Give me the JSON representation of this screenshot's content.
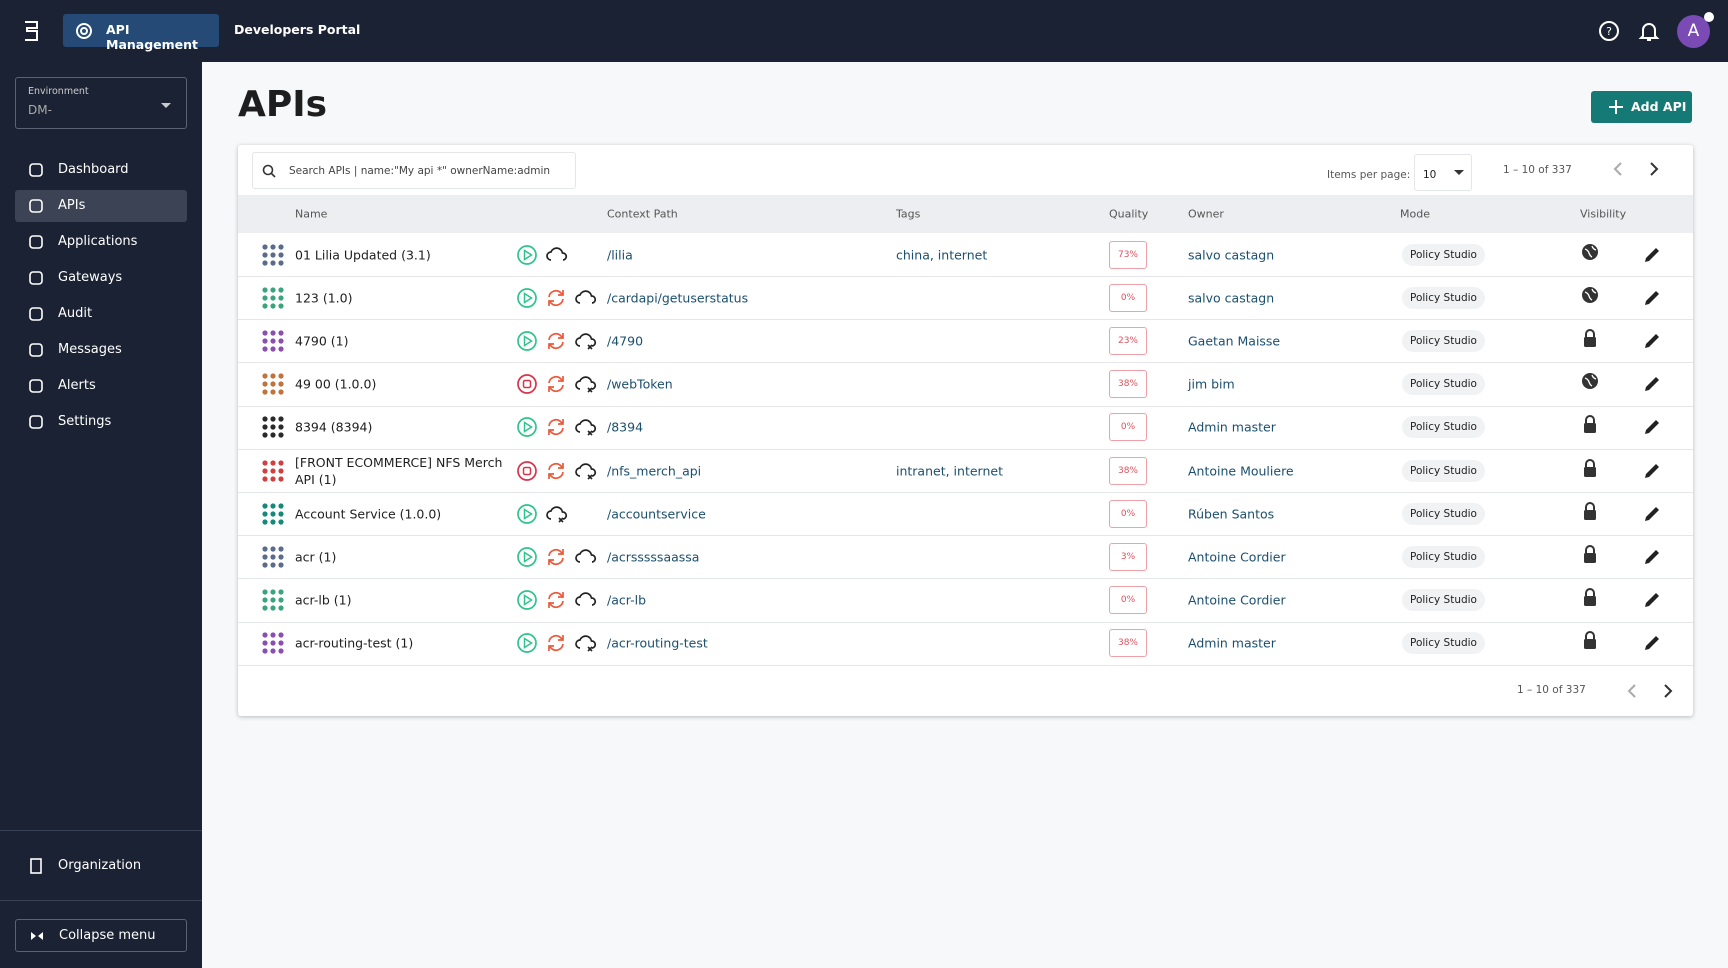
{
  "topbar": {
    "api_management": "API Management",
    "developers_portal": "Developers Portal",
    "avatar": "A"
  },
  "sidebar": {
    "environment_label": "Environment",
    "environment_value": "DM-",
    "nav": [
      "Dashboard",
      "APIs",
      "Applications",
      "Gateways",
      "Audit",
      "Messages",
      "Alerts",
      "Settings"
    ],
    "organization": "Organization",
    "collapse": "Collapse menu"
  },
  "page": {
    "title": "APIs",
    "add_button": "Add API"
  },
  "table": {
    "search_placeholder": "Search APIs | name:\"My api *\" ownerName:admin",
    "items_per_page_label": "Items per page:",
    "items_per_page": "10",
    "pagination": "1 – 10 of 337",
    "columns": [
      "Name",
      "Context Path",
      "Tags",
      "Quality",
      "Owner",
      "Mode",
      "Visibility"
    ],
    "rows": [
      {
        "name": "01 Lilia Updated (3.1)",
        "status": "started",
        "sync": false,
        "deployed": true,
        "context_path": "/lilia",
        "tags": "china, internet",
        "quality": "73%",
        "owner": "salvo castagn",
        "mode": "Policy Studio",
        "visibility": "public"
      },
      {
        "name": "123 (1.0)",
        "status": "started",
        "sync": true,
        "deployed": true,
        "context_path": "/cardapi/getuserstatus",
        "quality": "0%",
        "owner": "salvo castagn",
        "mode": "Policy Studio",
        "visibility": "public"
      },
      {
        "name": "4790 (1)",
        "status": "started",
        "sync": true,
        "deployed": false,
        "context_path": "/4790",
        "quality": "23%",
        "owner": "Gaetan Maisse",
        "mode": "Policy Studio",
        "visibility": "private"
      },
      {
        "name": "49 00 (1.0.0)",
        "status": "stopped",
        "sync": true,
        "deployed": false,
        "context_path": "/webToken",
        "quality": "38%",
        "owner": "jim bim",
        "mode": "Policy Studio",
        "visibility": "public"
      },
      {
        "name": "8394 (8394)",
        "status": "started",
        "sync": true,
        "deployed": false,
        "context_path": "/8394",
        "quality": "0%",
        "owner": "Admin master",
        "mode": "Policy Studio",
        "visibility": "private"
      },
      {
        "name": "[FRONT ECOMMERCE] NFS Merch API (1)",
        "status": "stopped",
        "sync": true,
        "deployed": false,
        "context_path": "/nfs_merch_api",
        "tags": "intranet, internet",
        "quality": "38%",
        "owner": "Antoine Mouliere",
        "mode": "Policy Studio",
        "visibility": "private"
      },
      {
        "name": "Account Service (1.0.0)",
        "status": "started",
        "sync": false,
        "deployed": false,
        "context_path": "/accountservice",
        "quality": "0%",
        "owner": "Rúben Santos",
        "mode": "Policy Studio",
        "visibility": "private"
      },
      {
        "name": "acr (1)",
        "status": "started",
        "sync": true,
        "deployed": true,
        "context_path": "/acrsssssaassa",
        "quality": "3%",
        "owner": "Antoine Cordier",
        "mode": "Policy Studio",
        "visibility": "private"
      },
      {
        "name": "acr-lb (1)",
        "status": "started",
        "sync": true,
        "deployed": true,
        "context_path": "/acr-lb",
        "quality": "0%",
        "owner": "Antoine Cordier",
        "mode": "Policy Studio",
        "visibility": "private"
      },
      {
        "name": "acr-routing-test (1)",
        "status": "started",
        "sync": true,
        "deployed": false,
        "context_path": "/acr-routing-test",
        "quality": "38%",
        "owner": "Admin master",
        "mode": "Policy Studio",
        "visibility": "private"
      }
    ]
  }
}
